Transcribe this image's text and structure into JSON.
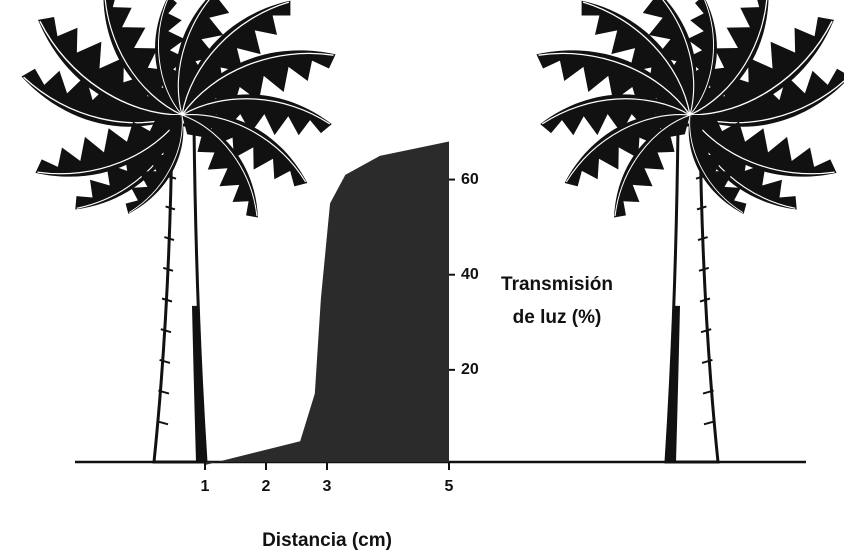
{
  "chart_data": {
    "type": "area",
    "x_label": "Distancia (cm)",
    "y_label": [
      "Transmisión",
      "de luz (%)"
    ],
    "x": [
      1,
      2.56,
      2.8,
      2.9,
      3.05,
      3.3,
      3.87,
      5
    ],
    "values": [
      0,
      5,
      15,
      35,
      55,
      61,
      65,
      68
    ],
    "color": "#2b2b2b",
    "xlim": [
      0,
      5
    ],
    "xticks": [
      1,
      2,
      3,
      5
    ],
    "ylim": [
      0,
      70
    ],
    "yticks": [
      20,
      40,
      60
    ]
  }
}
